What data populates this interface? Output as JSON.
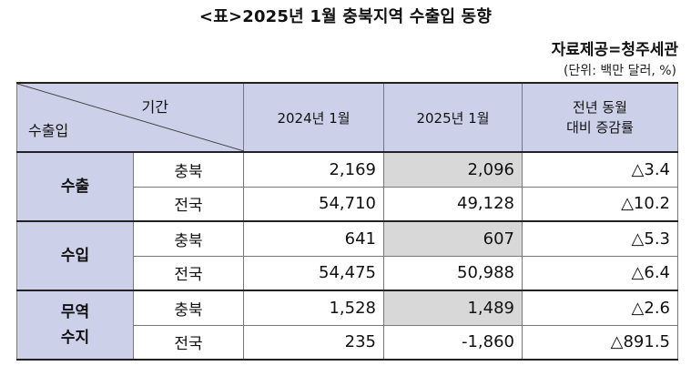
{
  "title": "<표>2025년 1월 충북지역 수출입 동향",
  "source": "자료제공=청주세관",
  "unit": "(단위: 백만 달러, %)",
  "table": {
    "corner_top": "기간",
    "corner_bottom": "수출입",
    "col1": "2024년 1월",
    "col2": "2025년 1월",
    "col3_line1": "전년 동월",
    "col3_line2": "대비 증감률",
    "groups": [
      {
        "category": "수출",
        "rows": [
          {
            "region": "충북",
            "v2024": "2,169",
            "v2025": "2,096",
            "change": "△3.4"
          },
          {
            "region": "전국",
            "v2024": "54,710",
            "v2025": "49,128",
            "change": "△10.2"
          }
        ]
      },
      {
        "category": "수입",
        "rows": [
          {
            "region": "충북",
            "v2024": "641",
            "v2025": "607",
            "change": "△5.3"
          },
          {
            "region": "전국",
            "v2024": "54,475",
            "v2025": "50,988",
            "change": "△6.4"
          }
        ]
      },
      {
        "category_line1": "무역",
        "category_line2": "수지",
        "rows": [
          {
            "region": "충북",
            "v2024": "1,528",
            "v2025": "1,489",
            "change": "△2.6"
          },
          {
            "region": "전국",
            "v2024": "235",
            "v2025": "-1,860",
            "change": "△891.5"
          }
        ]
      }
    ]
  }
}
